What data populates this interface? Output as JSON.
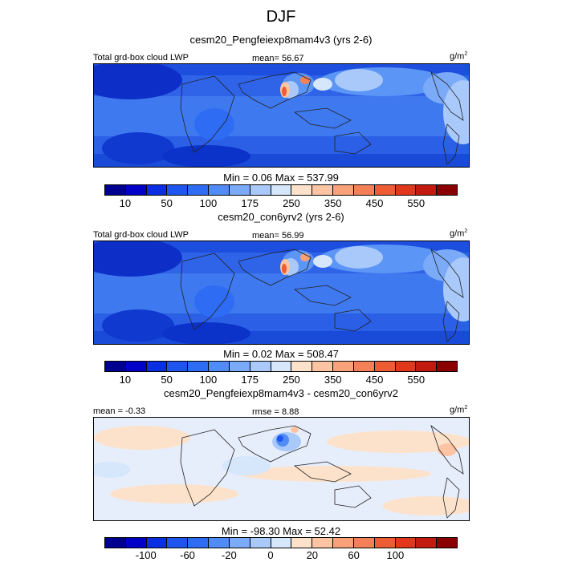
{
  "title": "DJF",
  "panels": [
    {
      "subtitle": "cesm20_Pengfeiexp8mam4v3 (yrs 2-6)",
      "left_label": "Total grd-box cloud LWP",
      "center_label": "mean=  56.67",
      "units": "g/m",
      "units_sup": "2",
      "minmax": "Min =   0.06 Max = 537.99",
      "colorbar": {
        "colors": [
          "#00008e",
          "#0000c6",
          "#0a2ee2",
          "#1e55ee",
          "#2f6cf4",
          "#4f8cf6",
          "#7aaaf8",
          "#a9c9fa",
          "#d6e6fb",
          "#fde2cb",
          "#fcc4a3",
          "#f9a27a",
          "#f48058",
          "#ee5c34",
          "#e1371c",
          "#c31a10",
          "#8a0000"
        ],
        "ticks": [
          "10",
          "50",
          "100",
          "175",
          "250",
          "350",
          "450",
          "550"
        ]
      }
    },
    {
      "subtitle": "cesm20_con6yrv2 (yrs 2-6)",
      "left_label": "Total grd-box cloud LWP",
      "center_label": "mean=  56.99",
      "units": "g/m",
      "units_sup": "2",
      "minmax": "Min =   0.02 Max = 508.47",
      "colorbar": {
        "colors": [
          "#00008e",
          "#0000c6",
          "#0a2ee2",
          "#1e55ee",
          "#2f6cf4",
          "#4f8cf6",
          "#7aaaf8",
          "#a9c9fa",
          "#d6e6fb",
          "#fde2cb",
          "#fcc4a3",
          "#f9a27a",
          "#f48058",
          "#ee5c34",
          "#e1371c",
          "#c31a10",
          "#8a0000"
        ],
        "ticks": [
          "10",
          "50",
          "100",
          "175",
          "250",
          "350",
          "450",
          "550"
        ]
      }
    },
    {
      "subtitle": "cesm20_Pengfeiexp8mam4v3 - cesm20_con6yrv2",
      "left_label": "mean =  -0.33",
      "center_label": "rmse =   8.88",
      "units": "g/m",
      "units_sup": "2",
      "minmax": "Min = -98.30 Max =  52.42",
      "colorbar": {
        "colors": [
          "#00008e",
          "#0000c6",
          "#0a2ee2",
          "#1e55ee",
          "#2f6cf4",
          "#4f8cf6",
          "#7aaaf8",
          "#a9c9fa",
          "#d6e6fb",
          "#fde2cb",
          "#fcc4a3",
          "#f9a27a",
          "#f48058",
          "#ee5c34",
          "#e1371c",
          "#c31a10",
          "#8a0000"
        ],
        "ticks": [
          "-100",
          "-60",
          "-20",
          "0",
          "20",
          "60",
          "100"
        ]
      }
    }
  ]
}
